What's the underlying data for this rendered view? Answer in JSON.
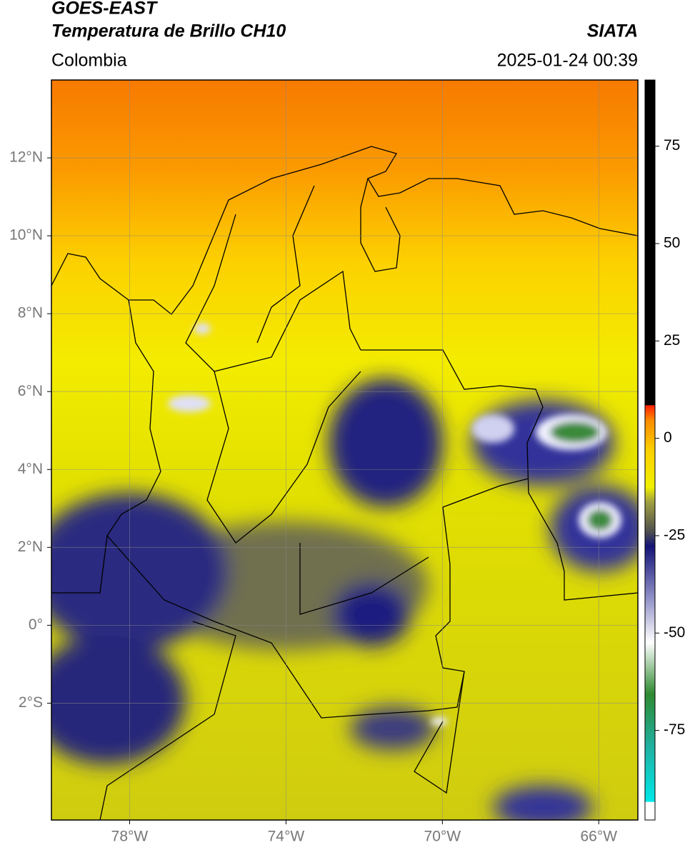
{
  "header": {
    "title": "GOES-EAST",
    "subtitle": "Temperatura de Brillo CH10",
    "region": "Colombia",
    "source": "SIATA",
    "datetime": "2025-01-24 00:39"
  },
  "map": {
    "xlim": [
      -80,
      -65
    ],
    "ylim": [
      -5,
      14
    ],
    "xticks": [
      {
        "value": -78,
        "label": "78°W"
      },
      {
        "value": -74,
        "label": "74°W"
      },
      {
        "value": -70,
        "label": "70°W"
      },
      {
        "value": -66,
        "label": "66°W"
      }
    ],
    "yticks": [
      {
        "value": 12,
        "label": "12°N"
      },
      {
        "value": 10,
        "label": "10°N"
      },
      {
        "value": 8,
        "label": "8°N"
      },
      {
        "value": 6,
        "label": "6°N"
      },
      {
        "value": 4,
        "label": "4°N"
      },
      {
        "value": 2,
        "label": "2°N"
      },
      {
        "value": 0,
        "label": "0°"
      },
      {
        "value": -2,
        "label": "2°S"
      }
    ]
  },
  "colorbar": {
    "lim": [
      -98,
      92
    ],
    "ticks": [
      75,
      50,
      25,
      0,
      -25,
      -50,
      -75
    ]
  }
}
